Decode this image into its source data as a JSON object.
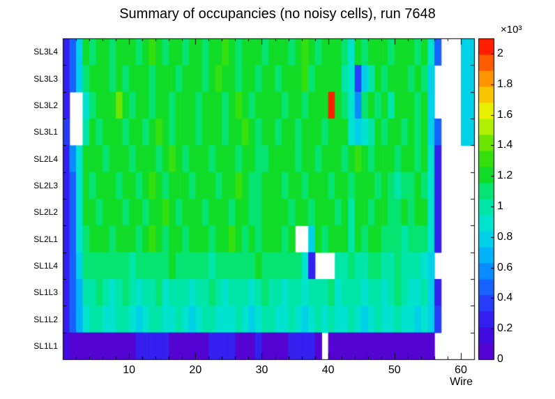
{
  "chart_data": {
    "type": "heatmap",
    "title": "Summary of occupancies (no noisy cells), run 7648",
    "xlabel": "Wire",
    "values_unit": "×10³",
    "x_range": [
      0,
      62
    ],
    "x_ticks": [
      10,
      20,
      30,
      40,
      50,
      60
    ],
    "zmin": 0,
    "zmax": 2.1,
    "colorbar_ticks": [
      "0",
      "0.2",
      "0.4",
      "0.6",
      "0.8",
      "1",
      "1.2",
      "1.4",
      "1.6",
      "1.8",
      "2"
    ],
    "legend_position": "right-colorbar",
    "grid_lines": false,
    "rows": [
      "SL3L4",
      "SL3L3",
      "SL3L2",
      "SL3L1",
      "SL2L4",
      "SL2L3",
      "SL2L2",
      "SL2L1",
      "SL1L4",
      "SL1L3",
      "SL1L2",
      "SL1L1"
    ],
    "palette": [
      {
        "t": 0.0,
        "c": "#5b00cc"
      },
      {
        "t": 0.1,
        "c": "#3a10e8"
      },
      {
        "t": 0.2,
        "c": "#1f4bff"
      },
      {
        "t": 0.3,
        "c": "#00a2ff"
      },
      {
        "t": 0.4,
        "c": "#00e1e1"
      },
      {
        "t": 0.5,
        "c": "#00e896"
      },
      {
        "t": 0.57,
        "c": "#0ddd2c"
      },
      {
        "t": 0.65,
        "c": "#49e100"
      },
      {
        "t": 0.72,
        "c": "#a8ef00"
      },
      {
        "t": 0.78,
        "c": "#eef000"
      },
      {
        "t": 0.86,
        "c": "#ffa500"
      },
      {
        "t": 0.93,
        "c": "#ff5500"
      },
      {
        "t": 1.0,
        "c": "#ff0000"
      }
    ],
    "grid": [
      [
        0.3,
        0.5,
        0.8,
        1.2,
        1.15,
        1.25,
        1.2,
        1.1,
        1.2,
        1.25,
        1.2,
        1.15,
        1.2,
        1.3,
        1.2,
        1.15,
        1.25,
        1.2,
        1.1,
        1.2,
        1.25,
        1.15,
        1.2,
        1.2,
        1.3,
        1.2,
        1.15,
        1.2,
        1.25,
        1.2,
        1.1,
        1.2,
        1.2,
        1.25,
        1.15,
        1.2,
        1.3,
        1.2,
        1.15,
        1.2,
        1.25,
        1.2,
        1.1,
        0.9,
        1.2,
        1.15,
        1.25,
        1.2,
        1.2,
        1.15,
        1.2,
        1.25,
        1.2,
        1.15,
        1.2,
        0.85,
        0.5,
        0,
        0,
        0,
        0.75,
        0.75
      ],
      [
        0.25,
        0.45,
        0.75,
        1.15,
        1.2,
        1.25,
        1.2,
        1.15,
        1.2,
        1.1,
        1.25,
        1.2,
        1.2,
        1.15,
        1.2,
        1.25,
        1.2,
        1.1,
        1.2,
        1.2,
        1.25,
        1.15,
        1.2,
        1.3,
        1.2,
        1.2,
        1.15,
        1.25,
        1.2,
        1.1,
        1.2,
        1.2,
        1.15,
        1.25,
        1.2,
        1.2,
        1.3,
        1.15,
        1.2,
        1.25,
        1.2,
        1.2,
        0.95,
        0.85,
        0.35,
        0.8,
        1.0,
        1.2,
        1.15,
        1.2,
        1.25,
        1.2,
        1.1,
        1.2,
        1.15,
        0.8,
        0,
        0,
        0,
        0,
        0.75,
        0.75
      ],
      [
        0.3,
        0,
        0,
        0.9,
        1.15,
        1.2,
        1.25,
        1.2,
        1.45,
        1.2,
        1.15,
        1.2,
        1.25,
        1.1,
        1.2,
        1.2,
        1.15,
        1.25,
        1.2,
        1.2,
        1.1,
        1.2,
        1.25,
        1.2,
        1.15,
        1.2,
        1.3,
        1.2,
        1.15,
        1.2,
        1.2,
        1.25,
        1.2,
        1.1,
        1.2,
        1.25,
        1.15,
        1.2,
        1.2,
        1.25,
        2.1,
        1.2,
        1.15,
        0.9,
        0.6,
        1.1,
        1.2,
        1.15,
        1.2,
        0.95,
        1.2,
        1.25,
        1.2,
        1.15,
        1.2,
        0.8,
        0,
        0,
        0,
        0,
        0.8,
        0.8
      ],
      [
        0.35,
        0,
        0,
        1.0,
        1.2,
        1.15,
        1.25,
        1.2,
        1.2,
        1.1,
        1.2,
        1.25,
        1.15,
        1.2,
        1.3,
        1.2,
        1.15,
        1.2,
        1.25,
        1.2,
        1.1,
        1.2,
        1.2,
        1.25,
        1.15,
        1.2,
        1.2,
        1.3,
        1.2,
        1.15,
        1.25,
        1.2,
        1.1,
        1.2,
        1.2,
        1.15,
        1.25,
        1.2,
        1.2,
        1.15,
        1.2,
        1.25,
        1.2,
        0.85,
        0.8,
        0.9,
        1.0,
        1.2,
        1.15,
        1.2,
        1.25,
        1.1,
        1.2,
        1.15,
        1.2,
        0.8,
        0.45,
        0,
        0,
        0,
        0.8,
        0.8
      ],
      [
        0.3,
        0.55,
        0.9,
        1.2,
        1.25,
        1.2,
        1.15,
        1.2,
        1.25,
        1.2,
        1.1,
        1.2,
        1.2,
        1.25,
        1.15,
        1.2,
        1.3,
        1.2,
        1.15,
        1.2,
        1.25,
        1.2,
        1.1,
        1.2,
        1.2,
        1.25,
        1.15,
        1.2,
        1.2,
        1.1,
        1.15,
        1.2,
        1.25,
        1.2,
        1.2,
        1.15,
        1.25,
        1.2,
        1.1,
        1.2,
        1.2,
        1.25,
        1.15,
        1.2,
        1.3,
        1.2,
        1.15,
        1.2,
        1.25,
        1.2,
        1.1,
        1.2,
        1.2,
        1.15,
        1.25,
        0.9,
        0.3,
        0,
        0,
        0,
        0,
        0
      ],
      [
        0.3,
        0.5,
        0.85,
        1.2,
        1.15,
        1.25,
        1.2,
        1.2,
        1.1,
        1.2,
        1.25,
        1.15,
        1.2,
        1.3,
        1.2,
        1.15,
        1.2,
        1.25,
        1.2,
        1.1,
        1.2,
        1.2,
        1.25,
        1.15,
        1.2,
        1.2,
        1.3,
        1.2,
        1.15,
        1.1,
        1.2,
        1.25,
        1.2,
        1.1,
        1.2,
        1.2,
        1.15,
        1.25,
        1.2,
        1.2,
        1.15,
        1.25,
        1.2,
        1.1,
        1.2,
        1.2,
        1.25,
        1.15,
        1.2,
        1.05,
        1.0,
        1.1,
        1.05,
        1.2,
        1.15,
        0.9,
        0.25,
        0,
        0,
        0,
        0,
        0
      ],
      [
        0.3,
        0.5,
        0.85,
        1.2,
        1.25,
        1.15,
        1.2,
        1.2,
        1.25,
        1.1,
        1.2,
        1.2,
        1.15,
        1.25,
        1.2,
        1.3,
        1.2,
        1.15,
        1.2,
        1.25,
        1.2,
        1.1,
        1.2,
        1.2,
        1.25,
        1.15,
        1.2,
        1.2,
        1.1,
        1.15,
        1.2,
        1.25,
        1.2,
        1.2,
        1.15,
        1.25,
        1.2,
        1.1,
        1.2,
        1.2,
        1.25,
        1.15,
        1.2,
        1.0,
        1.2,
        1.25,
        1.15,
        1.2,
        1.2,
        1.1,
        1.05,
        1.2,
        1.15,
        1.2,
        1.25,
        0.9,
        0.3,
        0,
        0,
        0,
        0,
        0
      ],
      [
        0.3,
        0.5,
        0.85,
        1.15,
        1.2,
        1.25,
        1.2,
        1.1,
        1.2,
        1.25,
        1.2,
        1.15,
        1.2,
        1.3,
        1.2,
        1.15,
        1.25,
        1.2,
        1.1,
        1.2,
        1.2,
        1.25,
        1.15,
        1.2,
        1.2,
        1.3,
        1.2,
        1.15,
        1.2,
        1.1,
        1.2,
        1.25,
        1.2,
        1.15,
        1.2,
        0,
        0,
        0.75,
        1.2,
        1.15,
        1.2,
        1.25,
        1.2,
        0.95,
        1.2,
        1.15,
        1.2,
        1.25,
        1.1,
        1.05,
        1.1,
        1.0,
        1.05,
        1.1,
        1.15,
        0.85,
        0.3,
        0,
        0,
        0,
        0,
        0
      ],
      [
        0.25,
        0.5,
        0.8,
        1.1,
        1.15,
        1.1,
        1.05,
        1.1,
        1.15,
        1.1,
        1.0,
        1.1,
        1.1,
        1.15,
        1.05,
        1.1,
        1.2,
        1.1,
        1.05,
        1.1,
        1.15,
        1.1,
        1.0,
        1.1,
        1.1,
        1.15,
        1.05,
        1.1,
        1.1,
        1.2,
        1.1,
        1.05,
        1.15,
        1.1,
        1.1,
        1.05,
        0.9,
        0.3,
        0,
        0,
        0,
        0.95,
        1.0,
        1.05,
        0.95,
        1.0,
        1.1,
        1.05,
        0.95,
        1.0,
        1.05,
        1.0,
        0.95,
        1.0,
        0.9,
        0.75,
        0,
        0,
        0,
        0,
        0,
        0
      ],
      [
        0.25,
        0.45,
        0.7,
        0.95,
        1.0,
        1.05,
        0.95,
        0.9,
        1.0,
        1.05,
        0.95,
        0.85,
        0.95,
        1.0,
        1.05,
        0.9,
        0.95,
        1.0,
        0.95,
        0.85,
        0.95,
        1.0,
        1.05,
        0.95,
        0.9,
        0.95,
        1.0,
        0.95,
        0.85,
        0.95,
        1.05,
        1.0,
        0.95,
        0.9,
        1.0,
        0.95,
        0.85,
        0.95,
        1.0,
        0.95,
        1.05,
        0.9,
        0.95,
        1.0,
        0.95,
        0.85,
        0.95,
        1.0,
        0.9,
        0.95,
        1.05,
        0.95,
        0.9,
        0.85,
        0.95,
        0.8,
        0.3,
        0,
        0,
        0,
        0,
        0
      ],
      [
        0.25,
        0.45,
        0.7,
        0.9,
        0.95,
        1.0,
        0.9,
        0.85,
        0.95,
        1.0,
        0.9,
        0.8,
        0.9,
        0.95,
        1.0,
        0.85,
        0.9,
        0.95,
        0.9,
        0.8,
        0.9,
        0.95,
        1.0,
        0.9,
        0.85,
        0.9,
        0.95,
        0.9,
        0.8,
        0.9,
        1.0,
        0.95,
        0.9,
        0.85,
        0.95,
        0.9,
        0.8,
        0.9,
        0.95,
        0.9,
        1.0,
        0.85,
        0.9,
        0.95,
        0.9,
        0.8,
        0.9,
        0.95,
        0.85,
        0.9,
        1.0,
        0.9,
        0.85,
        0.8,
        0.9,
        0.8,
        0.35,
        0,
        0,
        0,
        0,
        0
      ],
      [
        0.15,
        0.1,
        0.08,
        0.08,
        0.08,
        0.08,
        0.08,
        0.08,
        0.08,
        0.08,
        0.08,
        0.3,
        0.3,
        0.3,
        0.3,
        0.3,
        0.08,
        0.08,
        0.08,
        0.08,
        0.08,
        0.08,
        0.3,
        0.3,
        0.3,
        0.3,
        0.08,
        0.08,
        0.08,
        0.3,
        0.08,
        0.08,
        0.08,
        0.08,
        0.3,
        0.3,
        0.3,
        0.3,
        0.08,
        0,
        0.08,
        0.08,
        0.08,
        0.08,
        0.08,
        0.08,
        0.08,
        0.08,
        0.08,
        0.08,
        0.08,
        0.08,
        0.08,
        0.08,
        0.08,
        0.08,
        0,
        0,
        0,
        0,
        0,
        0
      ]
    ]
  }
}
